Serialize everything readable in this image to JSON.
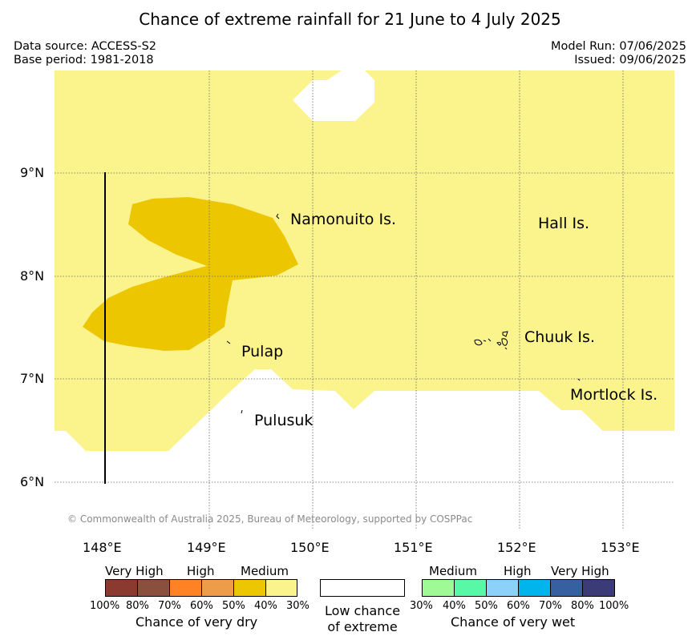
{
  "title": "Chance of extreme rainfall for 21 June to 4 July 2025",
  "header": {
    "data_source": "Data source: ACCESS-S2",
    "base_period": "Base period: 1981-2018",
    "model_run": "Model Run: 07/06/2025",
    "issued": "Issued: 09/06/2025"
  },
  "map": {
    "lat_labels": [
      "9°N",
      "8°N",
      "7°N",
      "6°N"
    ],
    "lon_labels": [
      "148°E",
      "149°E",
      "150°E",
      "151°E",
      "152°E",
      "153°E"
    ],
    "places": {
      "namonuito": "Namonuito Is.",
      "hall": "Hall Is.",
      "pulap": "Pulap",
      "chuuk": "Chuuk Is.",
      "mortlock": "Mortlock Is.",
      "pulusuk": "Pulusuk"
    },
    "copyright": "© Commonwealth of Australia 2025, Bureau of Meteorology, supported by COSPPac",
    "colors": {
      "dry_30_40": "#fbf38c",
      "dry_40_50": "#ecc600",
      "low_chance": "#ffffff"
    }
  },
  "legend": {
    "dry": {
      "categories": [
        "Very High",
        "High",
        "Medium"
      ],
      "colors": [
        "#8b3a2f",
        "#8b4f3d",
        "#ff8224",
        "#ee9b4a",
        "#ecc600",
        "#fbf38c"
      ],
      "ticks": [
        "100%",
        "80%",
        "70%",
        "60%",
        "50%",
        "40%",
        "30%"
      ],
      "caption": "Chance of very dry"
    },
    "low": {
      "line1": "Low chance",
      "line2": "of extreme"
    },
    "wet": {
      "categories": [
        "Medium",
        "High",
        "Very High"
      ],
      "colors": [
        "#9ffa96",
        "#58f9a6",
        "#8bd1f9",
        "#00b4ec",
        "#3660a0",
        "#3b3b78"
      ],
      "ticks": [
        "30%",
        "40%",
        "50%",
        "60%",
        "70%",
        "80%",
        "100%"
      ],
      "caption": "Chance of very wet"
    }
  }
}
